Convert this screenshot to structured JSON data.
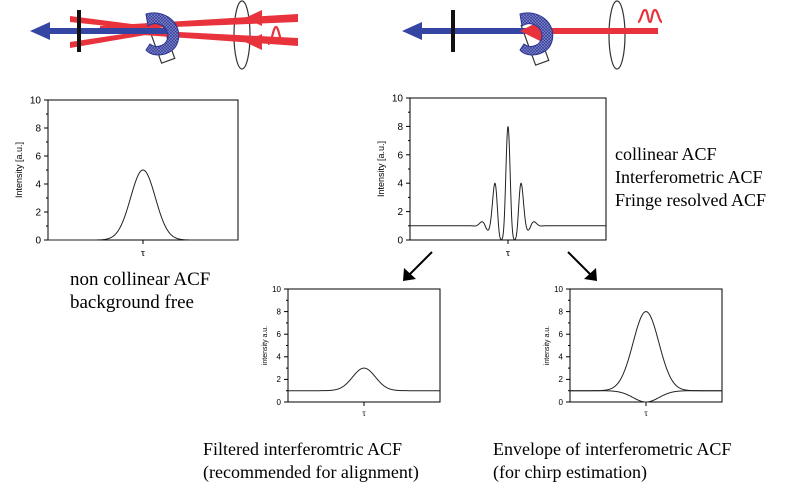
{
  "figure": {
    "colors": {
      "beam_red": "#e8333d",
      "beam_blue": "#3545a3",
      "crystal": "#5b64b8",
      "curve": "#222222"
    },
    "tau": "τ",
    "plots": {
      "noncollinear": {
        "ylabel": "Intensity [a.u.]",
        "xlabel": "τ",
        "yticks": [
          "0",
          "2",
          "4",
          "6",
          "8",
          "10"
        ]
      },
      "collinear": {
        "ylabel": "Intensity [a.u.]",
        "xlabel": "τ",
        "yticks": [
          "0",
          "2",
          "4",
          "6",
          "8",
          "10"
        ]
      },
      "filtered": {
        "ylabel": "intensity a.u.",
        "xlabel": "τ",
        "yticks": [
          "0",
          "2",
          "4",
          "6",
          "8",
          "10"
        ]
      },
      "envelope": {
        "ylabel": "intensity a.u.",
        "xlabel": "τ",
        "yticks": [
          "0",
          "2",
          "4",
          "6",
          "8",
          "10"
        ]
      }
    },
    "captions": {
      "noncollinear": [
        "non collinear ACF",
        "background free"
      ],
      "collinear": [
        "collinear ACF",
        "Interferometric ACF",
        "Fringe resolved ACF"
      ],
      "filtered": [
        "Filtered interferomtric ACF",
        "(recommended for alignment)"
      ],
      "envelope": [
        "Envelope of interferometric ACF",
        "(for chirp estimation)"
      ]
    }
  },
  "chart_data": [
    {
      "type": "line",
      "ylabel": "Intensity [a.u.]",
      "xlabel": "τ",
      "ylim": [
        0,
        10
      ],
      "series": [
        {
          "values": "gaussian, background 0, peak 5"
        }
      ]
    },
    {
      "type": "line",
      "ylabel": "Intensity [a.u.]",
      "xlabel": "τ",
      "ylim": [
        0,
        10
      ],
      "series": [
        {
          "values": "fringe-resolved, background 1, peak 8"
        }
      ]
    },
    {
      "type": "line",
      "ylabel": "intensity a.u.",
      "xlabel": "τ",
      "ylim": [
        0,
        10
      ],
      "series": [
        {
          "values": "gaussian, background 1, peak 3"
        }
      ]
    },
    {
      "type": "line",
      "ylabel": "intensity a.u.",
      "xlabel": "τ",
      "ylim": [
        0,
        10
      ],
      "series": [
        {
          "values": "upper envelope peak 8, lower envelope dip 0, background 1"
        }
      ]
    }
  ]
}
